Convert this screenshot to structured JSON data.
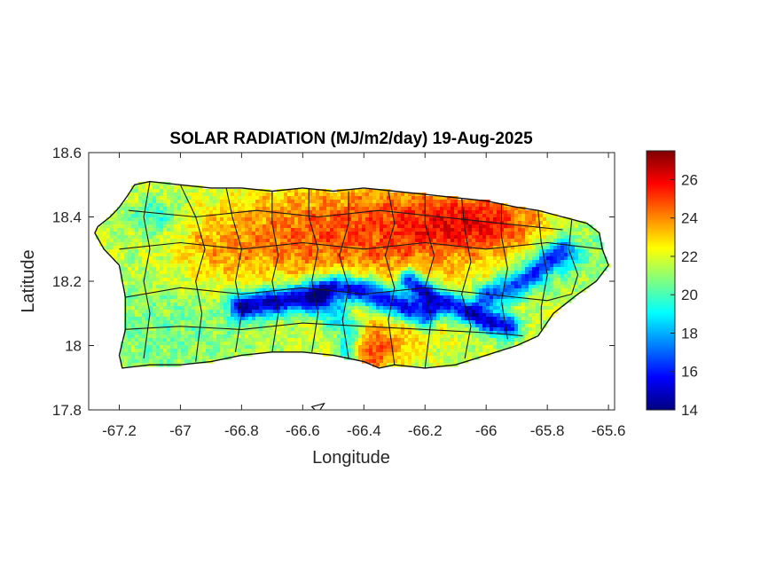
{
  "chart_data": {
    "type": "heatmap",
    "title": "SOLAR RADIATION (MJ/m2/day) 19-Aug-2025",
    "xlabel": "Longitude",
    "ylabel": "Latitude",
    "xlim": [
      -67.3,
      -65.58
    ],
    "ylim": [
      17.8,
      18.6
    ],
    "x_ticks": [
      -67.2,
      -67,
      -66.8,
      -66.6,
      -66.4,
      -66.2,
      -66,
      -65.8,
      -65.6
    ],
    "x_tick_labels": [
      "-67.2",
      "-67",
      "-66.8",
      "-66.6",
      "-66.4",
      "-66.2",
      "-66",
      "-65.8",
      "-65.6"
    ],
    "y_ticks": [
      17.8,
      18,
      18.2,
      18.4,
      18.6
    ],
    "y_tick_labels": [
      "17.8",
      "18",
      "18.2",
      "18.4",
      "18.6"
    ],
    "colorbar": {
      "colormap": "jet",
      "min": 14,
      "max": 27.5,
      "ticks": [
        14,
        16,
        18,
        20,
        22,
        24,
        26
      ],
      "tick_labels": [
        "14",
        "16",
        "18",
        "20",
        "22",
        "24",
        "26"
      ]
    },
    "grid": false,
    "region_outline": [
      [
        -67.27,
        18.37
      ],
      [
        -67.23,
        18.4
      ],
      [
        -67.2,
        18.43
      ],
      [
        -67.17,
        18.47
      ],
      [
        -67.15,
        18.5
      ],
      [
        -67.1,
        18.51
      ],
      [
        -67.0,
        18.5
      ],
      [
        -66.9,
        18.49
      ],
      [
        -66.8,
        18.49
      ],
      [
        -66.7,
        18.48
      ],
      [
        -66.6,
        18.49
      ],
      [
        -66.5,
        18.48
      ],
      [
        -66.4,
        18.49
      ],
      [
        -66.3,
        18.48
      ],
      [
        -66.2,
        18.47
      ],
      [
        -66.1,
        18.46
      ],
      [
        -66.0,
        18.45
      ],
      [
        -65.9,
        18.43
      ],
      [
        -65.83,
        18.42
      ],
      [
        -65.75,
        18.4
      ],
      [
        -65.67,
        18.38
      ],
      [
        -65.63,
        18.35
      ],
      [
        -65.62,
        18.3
      ],
      [
        -65.6,
        18.25
      ],
      [
        -65.64,
        18.2
      ],
      [
        -65.7,
        18.16
      ],
      [
        -65.78,
        18.1
      ],
      [
        -65.83,
        18.03
      ],
      [
        -65.9,
        18.0
      ],
      [
        -66.0,
        17.97
      ],
      [
        -66.1,
        17.94
      ],
      [
        -66.2,
        17.93
      ],
      [
        -66.3,
        17.94
      ],
      [
        -66.35,
        17.93
      ],
      [
        -66.4,
        17.95
      ],
      [
        -66.5,
        17.97
      ],
      [
        -66.6,
        17.98
      ],
      [
        -66.7,
        17.98
      ],
      [
        -66.8,
        17.97
      ],
      [
        -66.9,
        17.95
      ],
      [
        -67.0,
        17.94
      ],
      [
        -67.1,
        17.94
      ],
      [
        -67.19,
        17.93
      ],
      [
        -67.2,
        17.97
      ],
      [
        -67.18,
        18.05
      ],
      [
        -67.18,
        18.15
      ],
      [
        -67.2,
        18.25
      ],
      [
        -67.25,
        18.3
      ],
      [
        -67.28,
        18.35
      ]
    ],
    "islets": [
      [
        [
          -66.57,
          17.81
        ],
        [
          -66.53,
          17.82
        ],
        [
          -66.55,
          17.79
        ]
      ]
    ],
    "field_features": [
      {
        "type": "base",
        "value": 21.5
      },
      {
        "lon": -66.3,
        "lat": 18.36,
        "sx": 0.28,
        "sy": 0.12,
        "amp": 3.2
      },
      {
        "lon": -66.0,
        "lat": 18.38,
        "sx": 0.16,
        "sy": 0.06,
        "amp": 2.6
      },
      {
        "lon": -66.7,
        "lat": 18.33,
        "sx": 0.18,
        "sy": 0.1,
        "amp": 1.5
      },
      {
        "lon": -66.38,
        "lat": 17.98,
        "sx": 0.06,
        "sy": 0.04,
        "amp": 3.0
      },
      {
        "lon": -66.3,
        "lat": 18.05,
        "sx": 0.12,
        "sy": 0.07,
        "amp": 1.5
      },
      {
        "lon": -66.9,
        "lat": 18.3,
        "sx": 0.1,
        "sy": 0.08,
        "amp": 1.0
      },
      {
        "lon": -67.05,
        "lat": 18.05,
        "sx": 0.16,
        "sy": 0.1,
        "amp": -1.0
      },
      {
        "lon": -65.72,
        "lat": 18.3,
        "sx": 0.12,
        "sy": 0.08,
        "amp": -1.2
      },
      {
        "lon": -67.08,
        "lat": 18.4,
        "sx": 0.06,
        "sy": 0.04,
        "amp": -2.0
      },
      {
        "type": "band",
        "points": [
          [
            -66.8,
            18.12
          ],
          [
            -66.6,
            18.15
          ],
          [
            -66.5,
            18.18
          ],
          [
            -66.4,
            18.17
          ],
          [
            -66.3,
            18.13
          ],
          [
            -66.2,
            18.1
          ]
        ],
        "width": 0.03,
        "amp": -7.0
      },
      {
        "type": "band",
        "points": [
          [
            -66.25,
            18.2
          ],
          [
            -66.15,
            18.14
          ],
          [
            -66.05,
            18.1
          ],
          [
            -65.98,
            18.07
          ],
          [
            -65.93,
            18.06
          ]
        ],
        "width": 0.025,
        "amp": -6.5
      },
      {
        "type": "band",
        "points": [
          [
            -66.0,
            18.15
          ],
          [
            -65.92,
            18.18
          ],
          [
            -65.85,
            18.22
          ],
          [
            -65.8,
            18.26
          ],
          [
            -65.75,
            18.29
          ]
        ],
        "width": 0.03,
        "amp": -5.0
      },
      {
        "type": "band",
        "points": [
          [
            -66.55,
            18.14
          ],
          [
            -66.5,
            18.1
          ],
          [
            -66.45,
            18.05
          ],
          [
            -66.45,
            17.98
          ]
        ],
        "width": 0.03,
        "amp": -3.5
      }
    ],
    "boundary_lines": [
      [
        [
          -67.1,
          18.51
        ],
        [
          -67.12,
          18.4
        ],
        [
          -67.1,
          18.3
        ],
        [
          -67.12,
          18.2
        ],
        [
          -67.1,
          18.1
        ],
        [
          -67.12,
          17.96
        ]
      ],
      [
        [
          -67.0,
          18.5
        ],
        [
          -66.95,
          18.4
        ],
        [
          -66.92,
          18.3
        ],
        [
          -66.95,
          18.2
        ],
        [
          -66.93,
          18.1
        ],
        [
          -66.95,
          17.95
        ]
      ],
      [
        [
          -66.85,
          18.49
        ],
        [
          -66.83,
          18.4
        ],
        [
          -66.8,
          18.3
        ],
        [
          -66.82,
          18.2
        ],
        [
          -66.8,
          18.1
        ],
        [
          -66.82,
          17.98
        ]
      ],
      [
        [
          -66.7,
          18.48
        ],
        [
          -66.7,
          18.38
        ],
        [
          -66.68,
          18.28
        ],
        [
          -66.7,
          18.2
        ],
        [
          -66.68,
          18.1
        ],
        [
          -66.7,
          17.98
        ]
      ],
      [
        [
          -66.58,
          18.49
        ],
        [
          -66.58,
          18.4
        ],
        [
          -66.55,
          18.3
        ],
        [
          -66.57,
          18.2
        ],
        [
          -66.55,
          18.1
        ],
        [
          -66.57,
          17.98
        ]
      ],
      [
        [
          -66.45,
          18.48
        ],
        [
          -66.45,
          18.38
        ],
        [
          -66.48,
          18.28
        ],
        [
          -66.45,
          18.18
        ],
        [
          -66.47,
          18.08
        ],
        [
          -66.45,
          17.96
        ]
      ],
      [
        [
          -66.32,
          18.48
        ],
        [
          -66.3,
          18.38
        ],
        [
          -66.33,
          18.28
        ],
        [
          -66.3,
          18.18
        ],
        [
          -66.32,
          18.08
        ],
        [
          -66.3,
          17.94
        ]
      ],
      [
        [
          -66.2,
          18.47
        ],
        [
          -66.2,
          18.38
        ],
        [
          -66.17,
          18.28
        ],
        [
          -66.2,
          18.18
        ],
        [
          -66.18,
          18.08
        ],
        [
          -66.2,
          17.93
        ]
      ],
      [
        [
          -66.08,
          18.46
        ],
        [
          -66.07,
          18.36
        ],
        [
          -66.05,
          18.26
        ],
        [
          -66.08,
          18.16
        ],
        [
          -66.05,
          18.06
        ],
        [
          -66.07,
          17.96
        ]
      ],
      [
        [
          -65.95,
          18.44
        ],
        [
          -65.95,
          18.34
        ],
        [
          -65.93,
          18.24
        ],
        [
          -65.95,
          18.14
        ],
        [
          -65.93,
          18.02
        ]
      ],
      [
        [
          -65.83,
          18.42
        ],
        [
          -65.82,
          18.32
        ],
        [
          -65.8,
          18.22
        ],
        [
          -65.82,
          18.12
        ],
        [
          -65.82,
          18.05
        ]
      ],
      [
        [
          -65.72,
          18.39
        ],
        [
          -65.73,
          18.3
        ],
        [
          -65.7,
          18.22
        ],
        [
          -65.72,
          18.16
        ]
      ],
      [
        [
          -67.2,
          18.3
        ],
        [
          -67.0,
          18.32
        ],
        [
          -66.8,
          18.3
        ],
        [
          -66.6,
          18.32
        ],
        [
          -66.4,
          18.3
        ],
        [
          -66.2,
          18.32
        ],
        [
          -66.0,
          18.3
        ],
        [
          -65.8,
          18.32
        ],
        [
          -65.62,
          18.3
        ]
      ],
      [
        [
          -67.18,
          18.15
        ],
        [
          -67.0,
          18.18
        ],
        [
          -66.8,
          18.16
        ],
        [
          -66.6,
          18.18
        ],
        [
          -66.4,
          18.16
        ],
        [
          -66.2,
          18.18
        ],
        [
          -66.0,
          18.16
        ],
        [
          -65.8,
          18.14
        ],
        [
          -65.72,
          18.16
        ]
      ],
      [
        [
          -67.17,
          18.42
        ],
        [
          -66.95,
          18.4
        ],
        [
          -66.75,
          18.42
        ],
        [
          -66.55,
          18.4
        ],
        [
          -66.35,
          18.42
        ],
        [
          -66.15,
          18.4
        ],
        [
          -65.95,
          18.38
        ],
        [
          -65.75,
          18.36
        ]
      ],
      [
        [
          -67.19,
          18.05
        ],
        [
          -67.0,
          18.06
        ],
        [
          -66.8,
          18.05
        ],
        [
          -66.6,
          18.07
        ],
        [
          -66.4,
          18.06
        ],
        [
          -66.2,
          18.05
        ],
        [
          -66.0,
          18.04
        ],
        [
          -65.88,
          18.03
        ]
      ]
    ]
  }
}
